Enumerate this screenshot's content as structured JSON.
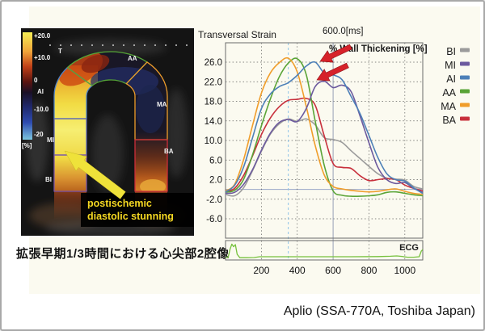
{
  "caption_jp": "拡張早期1/3時間における心尖部2腔像",
  "credit": "Aplio (SSA-770A, Toshiba Japan)",
  "ultrasound": {
    "marker_t": "T",
    "colorbar": {
      "labels": [
        "+20.0",
        "+10.0",
        "0",
        "-10.0",
        "-20"
      ],
      "unit": "[%]"
    },
    "segment_labels": {
      "aa": "AA",
      "ma": "MA",
      "ba": "BA",
      "ai": "AI",
      "mi": "MI",
      "bi": "BI"
    },
    "annotation": {
      "line1": "postischemic",
      "line2": "diastolic stunning"
    }
  },
  "chart_data": {
    "type": "line",
    "title": "Transversal Strain",
    "cursor_label": "600.0[ms]",
    "annotation": "% Wall Thickening  [%]",
    "xlabel": "",
    "ylabel": "",
    "xlim": [
      0,
      1100
    ],
    "ylim": [
      -10,
      30
    ],
    "x_ticks": [
      200,
      400,
      600,
      800,
      1000
    ],
    "y_ticks": [
      26.0,
      22.0,
      18.0,
      14.0,
      10.0,
      6.0,
      2.0,
      -2.0,
      -6.0
    ],
    "grid": "dashed",
    "legend_position": "right",
    "cursor_ms": 600,
    "precursor_ms": 350,
    "x": [
      0,
      50,
      100,
      150,
      200,
      250,
      300,
      350,
      400,
      450,
      500,
      550,
      600,
      650,
      700,
      750,
      800,
      850,
      900,
      950,
      1000,
      1050,
      1100
    ],
    "series": [
      {
        "name": "BI",
        "color": "#9b9b9b",
        "values": [
          -1.0,
          -1.3,
          0.3,
          3.8,
          7.8,
          11.3,
          13.4,
          14.4,
          13.9,
          14.4,
          13.2,
          10.6,
          10.2,
          9.6,
          7.9,
          6.3,
          4.7,
          3.2,
          2.3,
          2.1,
          1.9,
          0.6,
          0.1
        ]
      },
      {
        "name": "MI",
        "color": "#6c5a9e",
        "values": [
          -0.8,
          -0.6,
          1.0,
          4.0,
          8.0,
          11.5,
          13.7,
          14.3,
          13.9,
          16.5,
          21.0,
          22.1,
          20.8,
          21.3,
          20.0,
          15.0,
          9.5,
          4.5,
          2.0,
          1.2,
          1.4,
          0.2,
          -0.6
        ]
      },
      {
        "name": "AI",
        "color": "#4d80b8",
        "values": [
          -0.5,
          0.8,
          4.5,
          10.5,
          16.5,
          19.5,
          21.0,
          21.8,
          23.3,
          25.2,
          26.0,
          23.8,
          23.4,
          22.4,
          19.0,
          15.5,
          11.0,
          6.5,
          3.2,
          2.0,
          1.7,
          0.3,
          -0.8
        ]
      },
      {
        "name": "AA",
        "color": "#5aa437",
        "values": [
          -0.5,
          -0.2,
          2.0,
          7.0,
          13.0,
          18.5,
          23.0,
          25.8,
          26.7,
          23.5,
          14.0,
          5.0,
          -0.3,
          -1.2,
          -1.4,
          -1.4,
          -1.3,
          -1.1,
          -0.6,
          -0.5,
          -0.8,
          -1.1,
          -1.3
        ]
      },
      {
        "name": "MA",
        "color": "#f09d2a",
        "values": [
          -0.3,
          1.0,
          6.0,
          13.0,
          19.7,
          23.8,
          25.9,
          26.8,
          24.0,
          17.0,
          9.0,
          3.0,
          0.6,
          0.1,
          -0.2,
          -0.4,
          -0.5,
          -0.4,
          -0.1,
          0.1,
          -0.4,
          -0.8,
          -1.0
        ]
      },
      {
        "name": "BA",
        "color": "#c8303c",
        "values": [
          -0.5,
          0.2,
          2.8,
          6.8,
          11.2,
          14.6,
          16.9,
          18.2,
          18.4,
          18.6,
          17.2,
          11.0,
          5.3,
          4.5,
          4.3,
          2.8,
          1.8,
          2.0,
          2.2,
          2.0,
          0.9,
          0.2,
          -0.3
        ]
      }
    ],
    "ecg": {
      "label": "ECG",
      "color": "#76c13d",
      "x": [
        0,
        15,
        25,
        35,
        45,
        55,
        65,
        80,
        120,
        160,
        190,
        300,
        500,
        700,
        850,
        920,
        955,
        985,
        1015,
        1050,
        1080,
        1092,
        1100
      ],
      "values": [
        0.05,
        0.07,
        0.55,
        0.88,
        0.72,
        0.85,
        0.25,
        0.04,
        0.04,
        0.05,
        0.1,
        0.1,
        0.1,
        0.1,
        0.11,
        0.13,
        0.15,
        0.12,
        0.07,
        0.07,
        0.1,
        0.45,
        0.55
      ]
    },
    "colors": {
      "grid": "#3a3a3a",
      "zero_line": "#9aa8c8",
      "cursor_line": "#98a0b8",
      "precursor_line": "#8fc4e8",
      "arrow": "#d6222a"
    }
  }
}
